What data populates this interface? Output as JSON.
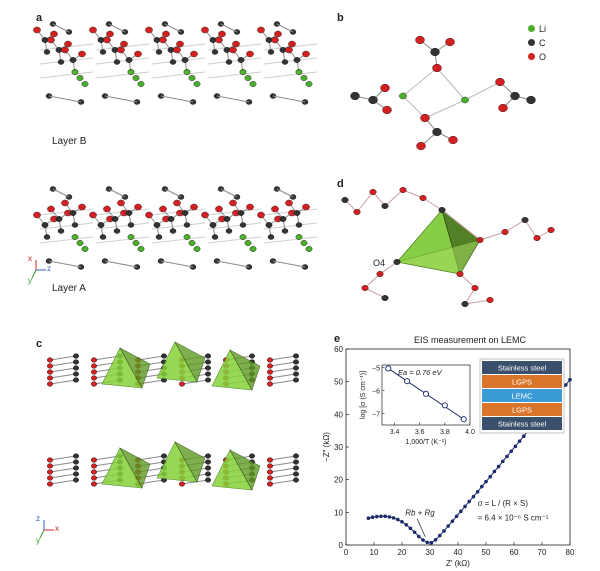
{
  "panels": {
    "a": {
      "label": "a",
      "layer_top": "Layer B",
      "layer_bottom": "Layer A",
      "axes": {
        "x": "x",
        "y": "y",
        "z": "z"
      }
    },
    "b": {
      "label": "b",
      "legend": [
        {
          "symbol": "Li",
          "color": "#4caf2a"
        },
        {
          "symbol": "C",
          "color": "#333333"
        },
        {
          "symbol": "O",
          "color": "#d42020"
        }
      ]
    },
    "c": {
      "label": "c",
      "axes": {
        "x": "x",
        "y": "y",
        "z": "z"
      }
    },
    "d": {
      "label": "d",
      "atom_label": "O4"
    },
    "e": {
      "label": "e"
    }
  },
  "chart_data": {
    "type": "scatter",
    "title": "EIS measurement on LEMC",
    "xlabel": "Z′ (kΩ)",
    "ylabel": "−Z″ (kΩ)",
    "xlim": [
      0,
      80
    ],
    "ylim": [
      0,
      60
    ],
    "xticks": [
      "0",
      "10",
      "20",
      "30",
      "40",
      "50",
      "60",
      "70",
      "80"
    ],
    "yticks": [
      "0",
      "10",
      "20",
      "30",
      "40",
      "50",
      "60"
    ],
    "series": [
      {
        "x": [
          8,
          9.5,
          11,
          12.5,
          14,
          15.5,
          17,
          18.5,
          20,
          21.5,
          23,
          24.5,
          26,
          27.5,
          29,
          30.5,
          32,
          33.5,
          35,
          36.5,
          38,
          39.5,
          41,
          42.5,
          44,
          45.5,
          47,
          48.5,
          50,
          51.5,
          53,
          54.5,
          56,
          57.5,
          59,
          60.5,
          62,
          63.5,
          65,
          66.5,
          68,
          69.5,
          71,
          72.5,
          74,
          75.5,
          77,
          78.5,
          80
        ],
        "y": [
          8.2,
          8.5,
          8.7,
          8.8,
          8.8,
          8.6,
          8.3,
          7.8,
          7.1,
          6.2,
          5.1,
          3.9,
          2.6,
          1.5,
          0.8,
          0.7,
          1.6,
          2.9,
          4.3,
          5.8,
          7.3,
          8.8,
          10.3,
          11.8,
          13.3,
          14.8,
          16.3,
          17.9,
          19.4,
          20.9,
          22.5,
          24.0,
          25.6,
          27.1,
          28.7,
          30.2,
          31.8,
          33.3,
          34.9,
          36.5,
          38.0,
          39.6,
          41.2,
          42.8,
          44.3,
          45.9,
          47.5,
          49.0,
          50.6
        ]
      }
    ],
    "annotations": {
      "peak_label": "R",
      "peak_label_text": "Rb + Rg",
      "sigma_line1": "σ = L / (R × S)",
      "sigma_line2": "= 6.4 × 10⁻⁶ S cm⁻¹"
    },
    "inset": {
      "type": "scatter",
      "ea_text": "Ea = 0.76 eV",
      "xlabel": "1,000/T (K⁻¹)",
      "ylabel": "log [σ (S cm⁻¹)]",
      "xlim": [
        3.3,
        4.0
      ],
      "ylim": [
        -7.5,
        -4.9
      ],
      "xticks": [
        "3.4",
        "3.6",
        "3.8",
        "4.0"
      ],
      "yticks": [
        "−5",
        "−6",
        "−7"
      ],
      "x": [
        3.35,
        3.5,
        3.65,
        3.8,
        3.95
      ],
      "y": [
        -5.05,
        -5.6,
        -6.15,
        -6.65,
        -7.25
      ]
    },
    "cell_stack": {
      "layers": [
        {
          "label": "Stainless steel",
          "color": "#3a4f6b"
        },
        {
          "label": "LGPS",
          "color": "#d9752a"
        },
        {
          "label": "LEMC",
          "color": "#3b9bd6"
        },
        {
          "label": "LGPS",
          "color": "#d9752a"
        },
        {
          "label": "Stainless steel",
          "color": "#3a4f6b"
        }
      ]
    }
  }
}
